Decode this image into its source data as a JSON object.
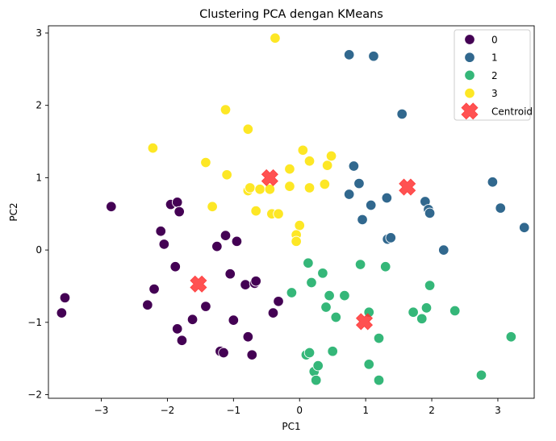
{
  "chart_data": {
    "type": "scatter",
    "title": "Clustering PCA dengan KMeans",
    "xlabel": "PC1",
    "ylabel": "PC2",
    "xlim": [
      -3.8,
      3.55
    ],
    "ylim": [
      -2.05,
      3.1
    ],
    "xticks": [
      -3,
      -2,
      -1,
      0,
      1,
      2,
      3
    ],
    "yticks": [
      -2,
      -1,
      0,
      1,
      2,
      3
    ],
    "grid": false,
    "legend_position": "top-right",
    "series": [
      {
        "name": "0",
        "color": "#440154",
        "points": [
          [
            -2.85,
            0.6
          ],
          [
            -3.55,
            -0.66
          ],
          [
            -3.6,
            -0.87
          ],
          [
            -2.3,
            -0.76
          ],
          [
            -2.2,
            -0.54
          ],
          [
            -2.1,
            0.26
          ],
          [
            -2.05,
            0.08
          ],
          [
            -1.95,
            0.63
          ],
          [
            -1.85,
            0.66
          ],
          [
            -1.82,
            0.53
          ],
          [
            -1.88,
            -0.23
          ],
          [
            -1.85,
            -1.09
          ],
          [
            -1.78,
            -1.25
          ],
          [
            -1.62,
            -0.96
          ],
          [
            -1.42,
            -0.78
          ],
          [
            -1.25,
            0.05
          ],
          [
            -1.2,
            -1.4
          ],
          [
            -1.15,
            -1.42
          ],
          [
            -1.12,
            0.2
          ],
          [
            -1.05,
            -0.33
          ],
          [
            -1.0,
            -0.97
          ],
          [
            -0.95,
            0.12
          ],
          [
            -0.82,
            -0.48
          ],
          [
            -0.78,
            -1.2
          ],
          [
            -0.72,
            -1.45
          ],
          [
            -0.68,
            -0.46
          ],
          [
            -0.66,
            -0.43
          ],
          [
            -0.4,
            -0.87
          ],
          [
            -0.32,
            -0.71
          ]
        ]
      },
      {
        "name": "1",
        "color": "#31688e",
        "points": [
          [
            0.75,
            2.7
          ],
          [
            1.12,
            2.68
          ],
          [
            1.55,
            1.88
          ],
          [
            0.82,
            1.16
          ],
          [
            0.75,
            0.77
          ],
          [
            0.9,
            0.92
          ],
          [
            0.95,
            0.42
          ],
          [
            1.08,
            0.62
          ],
          [
            1.32,
            0.72
          ],
          [
            1.33,
            0.15
          ],
          [
            1.38,
            0.17
          ],
          [
            1.9,
            0.67
          ],
          [
            1.95,
            0.56
          ],
          [
            1.97,
            0.51
          ],
          [
            2.18,
            0.0
          ],
          [
            2.92,
            0.94
          ],
          [
            3.04,
            0.58
          ],
          [
            3.4,
            0.31
          ]
        ]
      },
      {
        "name": "2",
        "color": "#35b779",
        "points": [
          [
            -0.12,
            -0.59
          ],
          [
            0.13,
            -0.18
          ],
          [
            0.18,
            -0.45
          ],
          [
            0.35,
            -0.32
          ],
          [
            0.4,
            -0.79
          ],
          [
            0.45,
            -0.63
          ],
          [
            0.55,
            -0.93
          ],
          [
            0.68,
            -0.63
          ],
          [
            0.92,
            -0.2
          ],
          [
            1.05,
            -0.86
          ],
          [
            1.3,
            -0.23
          ],
          [
            1.2,
            -1.22
          ],
          [
            1.05,
            -1.58
          ],
          [
            1.2,
            -1.8
          ],
          [
            0.5,
            -1.4
          ],
          [
            0.1,
            -1.45
          ],
          [
            0.15,
            -1.42
          ],
          [
            0.22,
            -1.68
          ],
          [
            0.28,
            -1.6
          ],
          [
            0.25,
            -1.8
          ],
          [
            1.72,
            -0.86
          ],
          [
            1.85,
            -0.95
          ],
          [
            1.92,
            -0.8
          ],
          [
            1.97,
            -0.49
          ],
          [
            2.35,
            -0.84
          ],
          [
            2.75,
            -1.73
          ],
          [
            3.2,
            -1.2
          ]
        ]
      },
      {
        "name": "3",
        "color": "#fde725",
        "points": [
          [
            -0.37,
            2.93
          ],
          [
            -1.12,
            1.94
          ],
          [
            -0.78,
            1.67
          ],
          [
            -2.22,
            1.41
          ],
          [
            -1.42,
            1.21
          ],
          [
            -1.1,
            1.04
          ],
          [
            -1.32,
            0.6
          ],
          [
            -0.78,
            0.82
          ],
          [
            -0.75,
            0.86
          ],
          [
            -0.6,
            0.84
          ],
          [
            -0.66,
            0.54
          ],
          [
            -0.45,
            0.84
          ],
          [
            -0.42,
            0.5
          ],
          [
            -0.32,
            0.5
          ],
          [
            -0.15,
            1.12
          ],
          [
            -0.15,
            0.88
          ],
          [
            0.05,
            1.38
          ],
          [
            0.15,
            1.23
          ],
          [
            0.15,
            0.86
          ],
          [
            0.38,
            0.91
          ],
          [
            0.42,
            1.17
          ],
          [
            0.48,
            1.3
          ],
          [
            0.0,
            0.34
          ],
          [
            -0.05,
            0.21
          ],
          [
            -0.05,
            0.12
          ]
        ]
      }
    ],
    "centroids": {
      "name": "Centroid",
      "color": "#ff3333",
      "points": [
        [
          -0.45,
          1.0
        ],
        [
          1.63,
          0.87
        ],
        [
          -1.53,
          -0.47
        ],
        [
          0.98,
          -0.99
        ]
      ]
    }
  }
}
